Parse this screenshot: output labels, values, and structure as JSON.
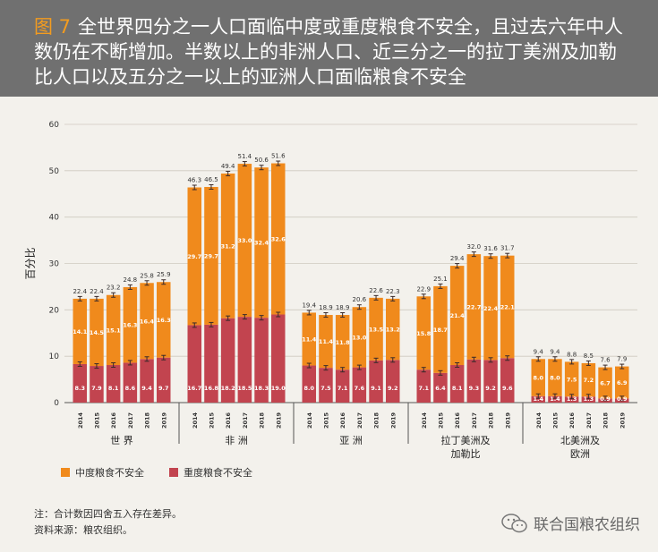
{
  "header": {
    "figure_label": "图 7",
    "title": "全世界四分之一人口面临中度或重度粮食不安全，且过去六年中人数仍在不断增加。半数以上的非洲人口、近三分之一的拉丁美洲及加勒比人口以及五分之一以上的亚洲人口面临粮食不安全"
  },
  "legend": {
    "moderate": "中度粮食不安全",
    "severe": "重度粮食不安全"
  },
  "notes": {
    "note": "注：合计数因四舍五入存在差异。",
    "source": "资料来源：粮农组织。"
  },
  "logo_text": "联合国粮农组织",
  "colors": {
    "moderate": "#f08a1c",
    "severe": "#c2444f",
    "header": "#707070",
    "figure_label": "#f39c1f"
  },
  "chart_data": {
    "type": "bar",
    "stacked": true,
    "ylabel": "百分比",
    "ylim": [
      0,
      60
    ],
    "yticks": [
      0,
      10,
      20,
      30,
      40,
      50,
      60
    ],
    "grid": true,
    "error_bars": true,
    "legend_position": "bottom-left",
    "years": [
      "2014",
      "2015",
      "2016",
      "2017",
      "2018",
      "2019"
    ],
    "groups": [
      {
        "name": "世  界",
        "severe": [
          8.3,
          7.9,
          8.1,
          8.6,
          9.4,
          9.7
        ],
        "moderate": [
          14.1,
          14.5,
          15.1,
          16.3,
          16.4,
          16.3
        ],
        "total": [
          22.4,
          22.4,
          23.2,
          24.8,
          25.8,
          25.9
        ]
      },
      {
        "name": "非  洲",
        "severe": [
          16.7,
          16.8,
          18.2,
          18.5,
          18.3,
          19.0
        ],
        "moderate": [
          29.7,
          29.7,
          31.2,
          33.0,
          32.4,
          32.6
        ],
        "total": [
          46.3,
          46.5,
          49.4,
          51.4,
          50.6,
          51.6
        ]
      },
      {
        "name": "亚  洲",
        "severe": [
          8.0,
          7.5,
          7.1,
          7.6,
          9.1,
          9.2
        ],
        "moderate": [
          11.4,
          11.4,
          11.8,
          13.0,
          13.5,
          13.2
        ],
        "total": [
          19.4,
          18.9,
          18.9,
          20.6,
          22.6,
          22.3
        ]
      },
      {
        "name": "拉丁美洲及\n加勒比",
        "severe": [
          7.1,
          6.4,
          8.1,
          9.3,
          9.2,
          9.6
        ],
        "moderate": [
          15.8,
          18.7,
          21.4,
          22.7,
          22.4,
          22.1
        ],
        "total": [
          22.9,
          25.1,
          29.4,
          32.0,
          31.6,
          31.7
        ]
      },
      {
        "name": "北美洲及\n欧洲",
        "severe": [
          1.4,
          1.4,
          1.3,
          1.3,
          0.9,
          0.9
        ],
        "moderate": [
          8.0,
          8.0,
          7.5,
          7.2,
          6.7,
          6.9
        ],
        "total": [
          9.4,
          9.4,
          8.8,
          8.5,
          7.6,
          7.9
        ]
      }
    ]
  }
}
